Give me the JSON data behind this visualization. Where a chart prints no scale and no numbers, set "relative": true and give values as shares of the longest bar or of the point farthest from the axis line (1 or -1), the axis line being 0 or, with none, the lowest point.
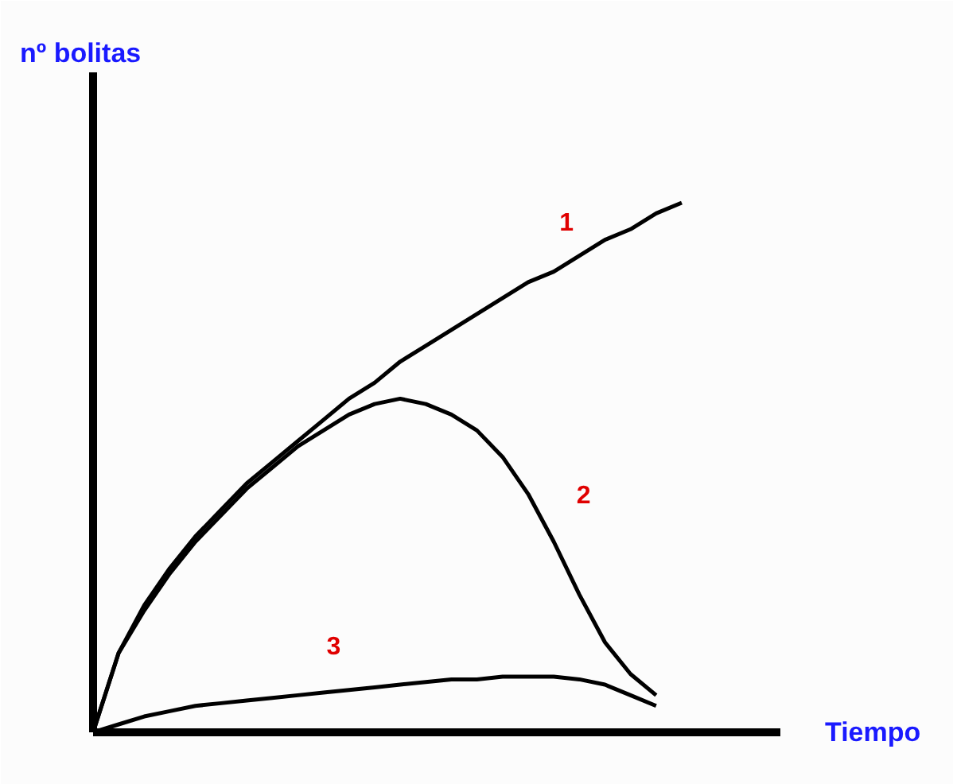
{
  "chart_data": {
    "type": "line",
    "relative": true,
    "xlabel": "Tiempo",
    "ylabel": "nº bolitas",
    "categories": [
      null,
      null,
      null,
      null,
      null,
      null,
      null,
      null,
      null,
      null,
      null,
      null,
      null,
      null,
      null,
      null,
      null,
      null,
      null,
      null,
      null,
      null,
      null,
      null
    ],
    "series": [
      {
        "name": "1",
        "color": "#000000",
        "values": [
          0,
          0.15,
          0.24,
          0.31,
          0.37,
          0.42,
          0.47,
          0.51,
          0.55,
          0.59,
          0.63,
          0.66,
          0.7,
          0.73,
          0.76,
          0.79,
          0.82,
          0.85,
          0.87,
          0.9,
          0.93,
          0.95,
          0.98,
          1
        ]
      },
      {
        "name": "2",
        "color": "#000000",
        "values": [
          0,
          0.15,
          0.23,
          0.3,
          0.36,
          0.41,
          0.46,
          0.5,
          0.54,
          0.57,
          0.6,
          0.62,
          0.63,
          0.62,
          0.6,
          0.57,
          0.52,
          0.45,
          0.36,
          0.26,
          0.17,
          0.11,
          0.07,
          null
        ]
      },
      {
        "name": "3",
        "color": "#000000",
        "values": [
          0,
          0.015,
          0.03,
          0.04,
          0.05,
          0.055,
          0.06,
          0.065,
          0.07,
          0.075,
          0.08,
          0.085,
          0.09,
          0.095,
          0.1,
          0.1,
          0.105,
          0.105,
          0.105,
          0.1,
          0.09,
          0.07,
          0.05,
          null
        ]
      }
    ],
    "grid": false,
    "marker": "none",
    "line_style": "solid"
  }
}
